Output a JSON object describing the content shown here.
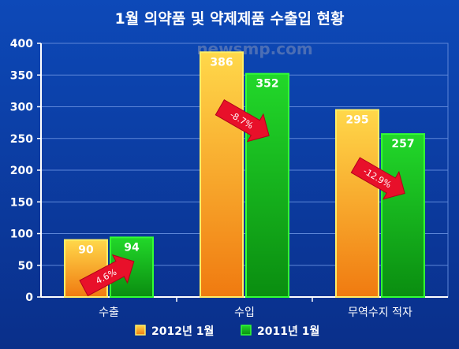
{
  "colors": {
    "background_top": "#0d49b8",
    "background_bottom": "#0a2f8a",
    "grid": "#5d86d8",
    "series_2012_top": "#ffd84a",
    "series_2012_bottom": "#f07a10",
    "series_2012_border": "#ffee66",
    "series_2011_top": "#22d82a",
    "series_2011_bottom": "#0a8d10",
    "series_2011_border": "#33ff33",
    "arrow": "#e8102a",
    "text": "#ffffff"
  },
  "watermark": "newsmp.com",
  "chart_data": {
    "type": "bar",
    "title": "1월 의약품 및 약제제품 수출입 현황",
    "categories": [
      "수출",
      "수입",
      "무역수지 적자"
    ],
    "series": [
      {
        "name": "2012년 1월",
        "values": [
          90,
          386,
          295
        ]
      },
      {
        "name": "2011년 1월",
        "values": [
          94,
          352,
          257
        ]
      }
    ],
    "data_labels": [
      [
        "90",
        "386",
        "295"
      ],
      [
        "94",
        "352",
        "257"
      ]
    ],
    "y_ticks": [
      0,
      50,
      100,
      150,
      200,
      250,
      300,
      350,
      400
    ],
    "ylim": [
      0,
      400
    ],
    "grid": true,
    "legend_position": "bottom",
    "annotations": [
      {
        "category": "수출",
        "text": "4.6%"
      },
      {
        "category": "수입",
        "text": "-8.7%"
      },
      {
        "category": "무역수지 적자",
        "text": "-12.9%"
      }
    ]
  }
}
